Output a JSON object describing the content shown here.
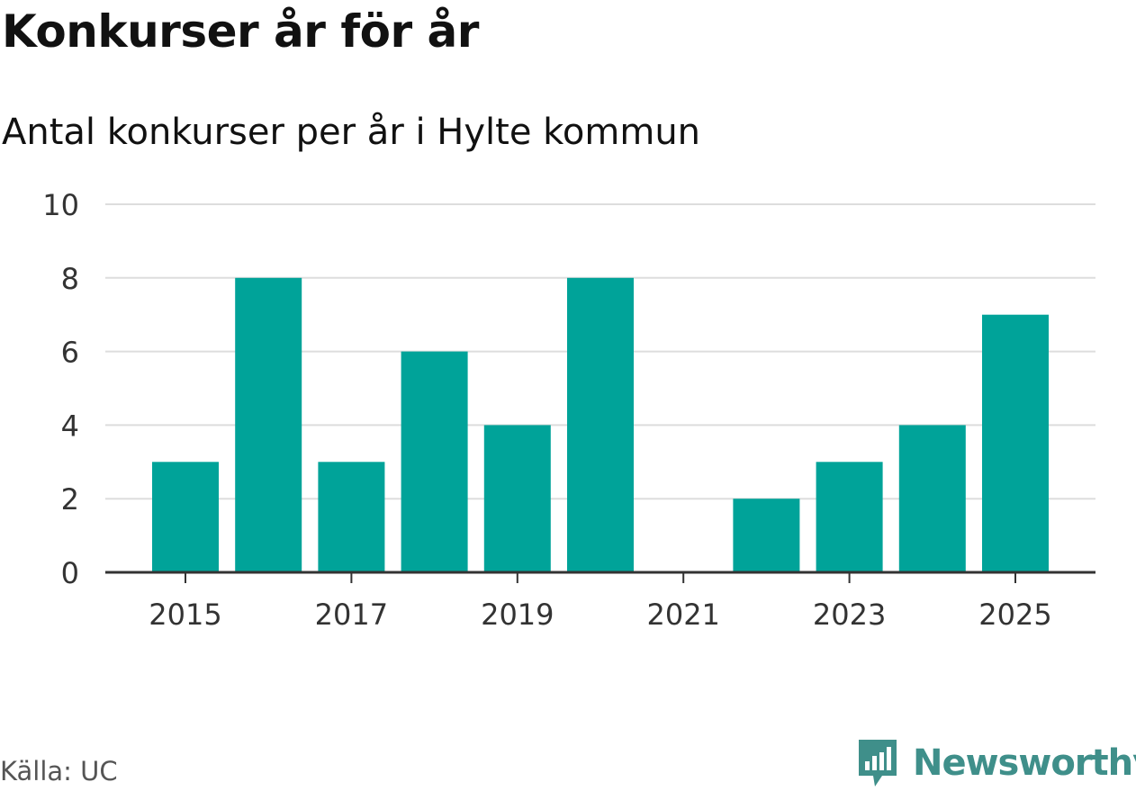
{
  "title": "Konkurser år för år",
  "subtitle": "Antal konkurser per år i Hylte kommun",
  "source": "Källa: UC",
  "brand": {
    "name": "Newsworthy",
    "color": "#3f8f8a",
    "icon": "newsworthy-logo-icon"
  },
  "chart_data": {
    "type": "bar",
    "categories": [
      "2015",
      "2016",
      "2017",
      "2018",
      "2019",
      "2020",
      "2021",
      "2022",
      "2023",
      "2024",
      "2025"
    ],
    "values": [
      3,
      8,
      3,
      6,
      4,
      8,
      0,
      2,
      3,
      4,
      7
    ],
    "x_tick_labels": [
      "2015",
      "2017",
      "2019",
      "2021",
      "2023",
      "2025"
    ],
    "y_ticks": [
      0,
      2,
      4,
      6,
      8,
      10
    ],
    "ylim": [
      0,
      10
    ],
    "xlabel": "",
    "ylabel": "",
    "grid": true,
    "bar_color": "#00a399",
    "grid_color": "#dddddd",
    "axis_color": "#333333"
  }
}
